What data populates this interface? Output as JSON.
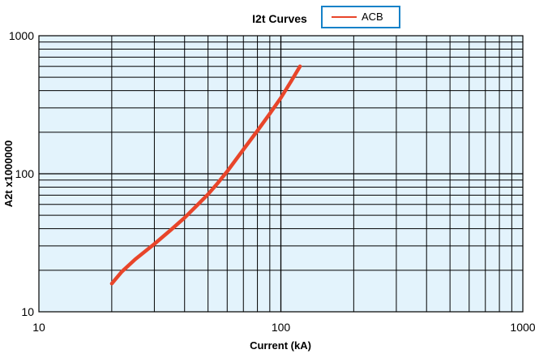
{
  "chart_data": {
    "type": "line",
    "title": "I2t Curves",
    "xlabel": "Current (kA)",
    "ylabel": "A2t x1000000",
    "x_scale": "log",
    "y_scale": "log",
    "xlim": [
      10,
      1000
    ],
    "ylim": [
      10,
      1000
    ],
    "x_ticks": [
      "10",
      "100",
      "1000"
    ],
    "y_ticks": [
      "10",
      "100",
      "1000"
    ],
    "grid": true,
    "legend_position": "top",
    "plot_background": "#e3f3fc",
    "series": [
      {
        "name": "ACB",
        "color": "#e8452a",
        "x": [
          20,
          22,
          25,
          30,
          35,
          40,
          45,
          50,
          55,
          60,
          70,
          80,
          90,
          100,
          110,
          120
        ],
        "y": [
          16,
          19.5,
          24,
          31,
          39,
          48,
          59,
          71,
          86,
          104,
          150,
          205,
          272,
          355,
          465,
          600
        ]
      }
    ]
  }
}
